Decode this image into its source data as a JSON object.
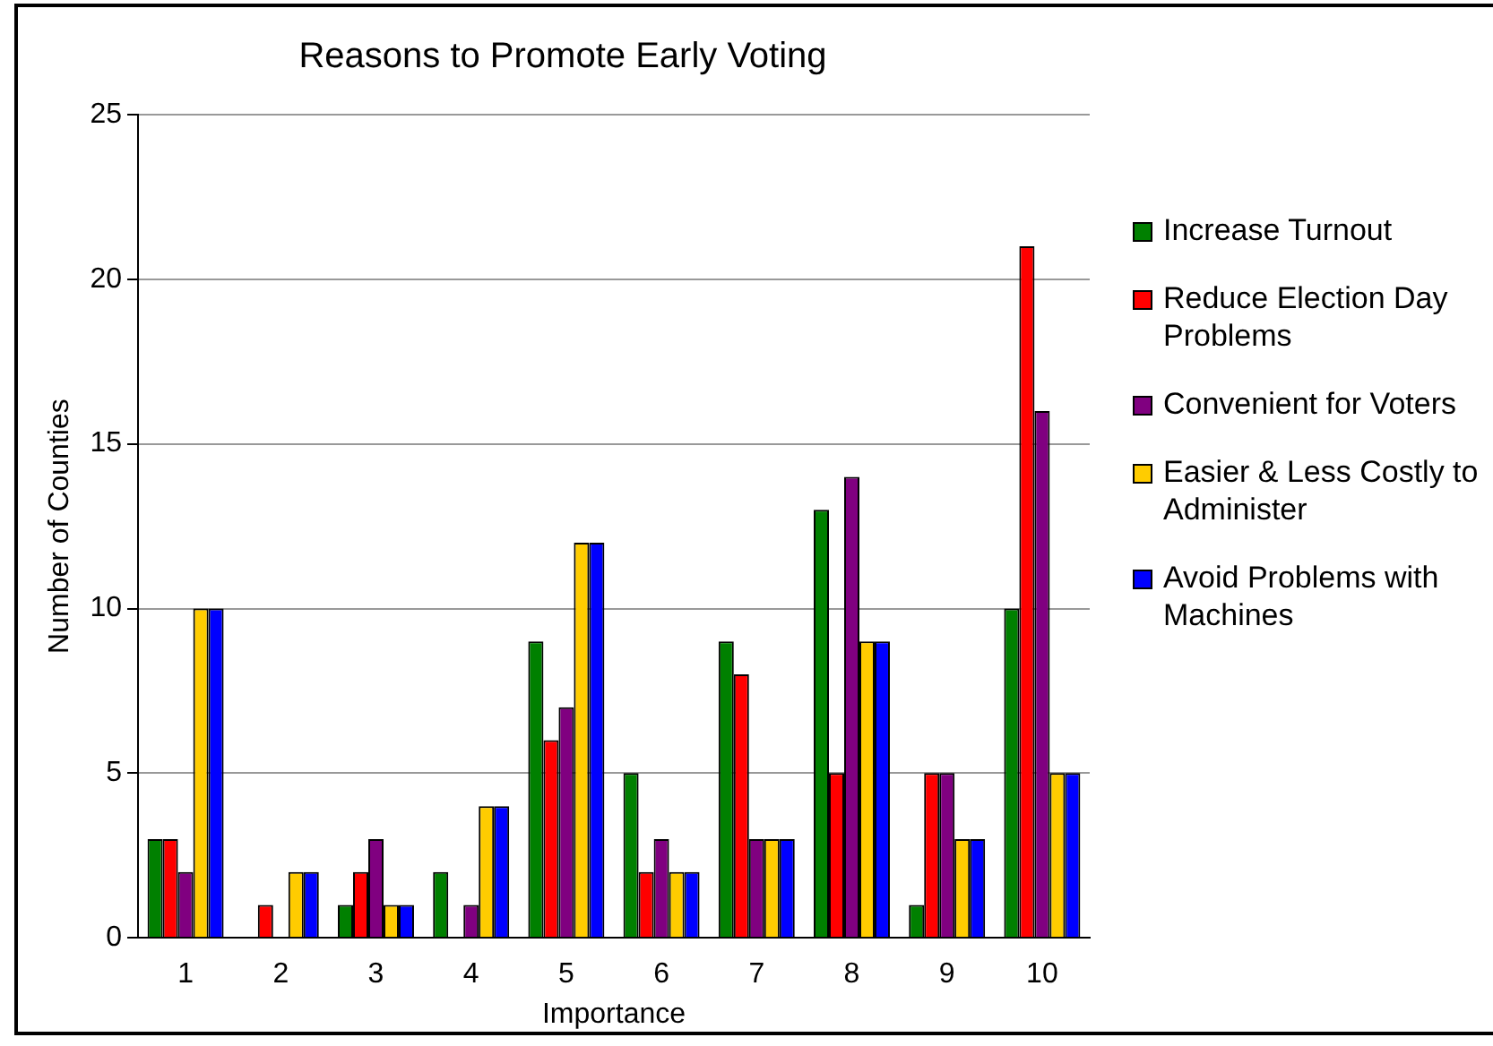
{
  "chart_data": {
    "type": "bar",
    "title": "Reasons to Promote Early Voting",
    "xlabel": "Importance",
    "ylabel": "Number of Counties",
    "categories": [
      "1",
      "2",
      "3",
      "4",
      "5",
      "6",
      "7",
      "8",
      "9",
      "10"
    ],
    "series": [
      {
        "name": "Increase Turnout",
        "color": "#008000",
        "values": [
          3,
          0,
          1,
          2,
          9,
          5,
          9,
          13,
          1,
          10
        ]
      },
      {
        "name": "Reduce Election Day Problems",
        "color": "#ff0000",
        "values": [
          3,
          1,
          2,
          0,
          6,
          2,
          8,
          5,
          5,
          21
        ]
      },
      {
        "name": "Convenient for Voters",
        "color": "#800080",
        "values": [
          2,
          0,
          3,
          1,
          7,
          3,
          3,
          14,
          5,
          16
        ]
      },
      {
        "name": "Easier & Less Costly to Administer",
        "color": "#ffcc00",
        "values": [
          10,
          2,
          1,
          4,
          12,
          2,
          3,
          9,
          3,
          5
        ]
      },
      {
        "name": "Avoid Problems with Machines",
        "color": "#0000ff",
        "values": [
          10,
          2,
          1,
          4,
          12,
          2,
          3,
          9,
          3,
          5
        ]
      }
    ],
    "ylim": [
      0,
      25
    ],
    "yticks": [
      0,
      5,
      10,
      15,
      20,
      25
    ],
    "grid": "y",
    "legend": "right"
  }
}
